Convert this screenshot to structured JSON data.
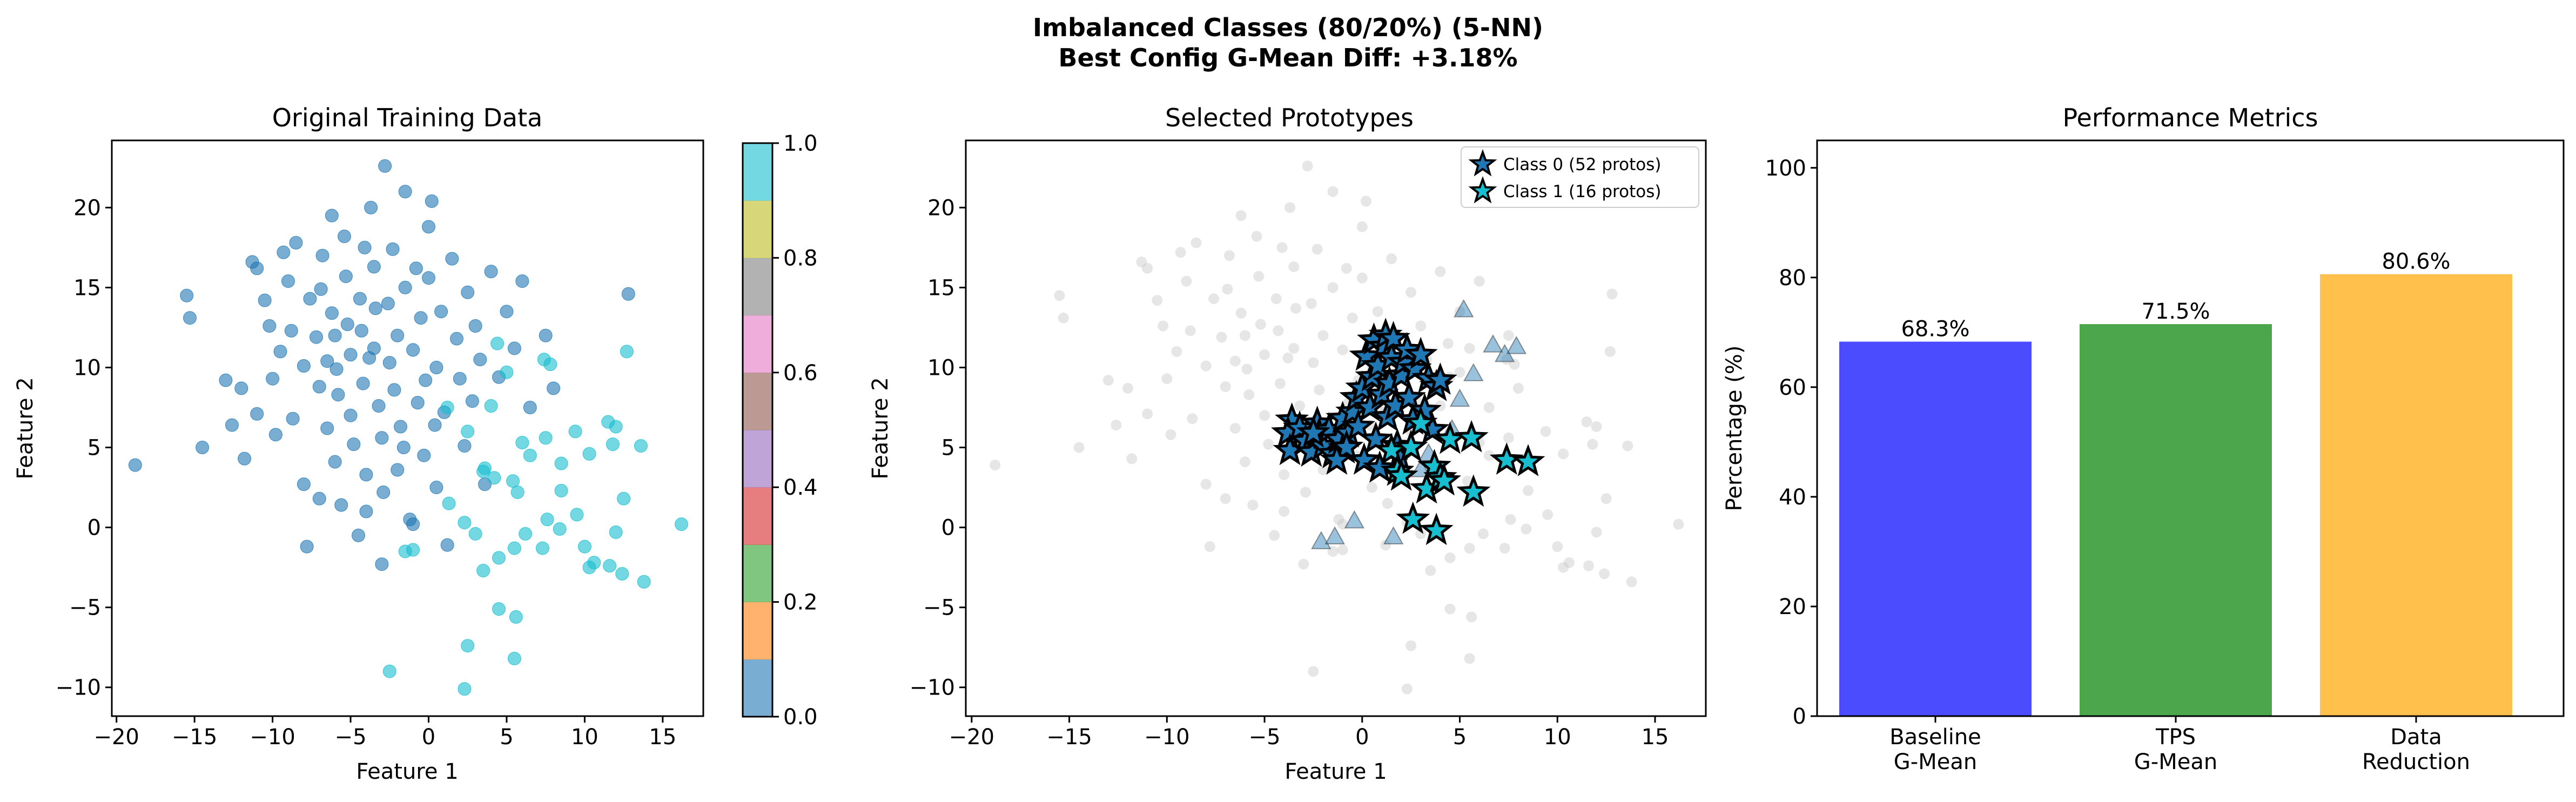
{
  "figure": {
    "title_line1": "Imbalanced Classes (80/20%) (5-NN)",
    "title_line2": "Best Config G-Mean Diff: +3.18%"
  },
  "chart_data": [
    {
      "type": "scatter",
      "title": "Original Training Data",
      "xlabel": "Feature 1",
      "ylabel": "Feature 2",
      "xlim": [
        -20.3,
        17.6
      ],
      "ylim": [
        -11.8,
        24.2
      ],
      "xticks": [
        -20,
        -15,
        -10,
        -5,
        0,
        5,
        10,
        15
      ],
      "yticks": [
        -10,
        -5,
        0,
        5,
        10,
        15,
        20
      ],
      "colorbar": {
        "ticks": [
          0.0,
          0.2,
          0.4,
          0.6,
          0.8,
          1.0
        ],
        "colors": [
          "#1f77b4",
          "#ff7f0e",
          "#2ca02c",
          "#d62728",
          "#9467bd",
          "#8c564b",
          "#e377c2",
          "#7f7f7f",
          "#bcbd22",
          "#17becf"
        ],
        "alpha": 0.6
      },
      "series": [
        {
          "name": "Class 0",
          "color": "#1f77b4",
          "points": [
            [
              -18.8,
              3.9
            ],
            [
              -15.5,
              14.5
            ],
            [
              -15.3,
              13.1
            ],
            [
              -14.5,
              5.0
            ],
            [
              -13.0,
              9.2
            ],
            [
              -12.6,
              6.4
            ],
            [
              -12.0,
              8.7
            ],
            [
              -11.8,
              4.3
            ],
            [
              -11.3,
              16.6
            ],
            [
              -11.0,
              16.2
            ],
            [
              -11.0,
              7.1
            ],
            [
              -10.5,
              14.2
            ],
            [
              -10.2,
              12.6
            ],
            [
              -10.0,
              9.3
            ],
            [
              -9.8,
              5.8
            ],
            [
              -9.3,
              17.2
            ],
            [
              -9.0,
              15.4
            ],
            [
              -8.8,
              12.3
            ],
            [
              -8.5,
              17.8
            ],
            [
              -8.0,
              10.1
            ],
            [
              -8.0,
              2.7
            ],
            [
              -7.8,
              -1.2
            ],
            [
              -7.6,
              14.3
            ],
            [
              -7.2,
              11.9
            ],
            [
              -7.0,
              8.8
            ],
            [
              -7.0,
              1.8
            ],
            [
              -6.8,
              17.0
            ],
            [
              -6.5,
              10.4
            ],
            [
              -6.5,
              6.2
            ],
            [
              -6.2,
              19.5
            ],
            [
              -6.2,
              13.4
            ],
            [
              -6.0,
              12.0
            ],
            [
              -6.0,
              4.1
            ],
            [
              -5.8,
              8.3
            ],
            [
              -5.6,
              1.4
            ],
            [
              -5.4,
              18.2
            ],
            [
              -5.3,
              15.7
            ],
            [
              -5.2,
              12.7
            ],
            [
              -5.0,
              10.8
            ],
            [
              -5.0,
              7.0
            ],
            [
              -4.8,
              5.2
            ],
            [
              -4.5,
              -0.5
            ],
            [
              -4.4,
              14.3
            ],
            [
              -4.3,
              12.3
            ],
            [
              -4.2,
              9.0
            ],
            [
              -4.0,
              3.3
            ],
            [
              -4.0,
              1.0
            ],
            [
              -3.7,
              20.0
            ],
            [
              -3.5,
              16.3
            ],
            [
              -3.5,
              11.2
            ],
            [
              -3.4,
              13.7
            ],
            [
              -3.2,
              7.6
            ],
            [
              -3.0,
              5.6
            ],
            [
              -3.0,
              -2.3
            ],
            [
              -2.8,
              22.6
            ],
            [
              -2.6,
              14.0
            ],
            [
              -2.5,
              10.3
            ],
            [
              -2.3,
              17.4
            ],
            [
              -2.2,
              8.6
            ],
            [
              -2.0,
              12.0
            ],
            [
              -2.0,
              3.6
            ],
            [
              -1.8,
              6.3
            ],
            [
              -1.5,
              21.0
            ],
            [
              -1.5,
              15.0
            ],
            [
              -1.2,
              0.5
            ],
            [
              -1.0,
              11.1
            ],
            [
              -0.8,
              16.2
            ],
            [
              -0.7,
              7.8
            ],
            [
              -0.5,
              13.1
            ],
            [
              -0.3,
              4.5
            ],
            [
              -0.2,
              9.2
            ],
            [
              0.0,
              18.8
            ],
            [
              0.0,
              15.6
            ],
            [
              0.2,
              20.4
            ],
            [
              0.5,
              10.0
            ],
            [
              0.5,
              2.5
            ],
            [
              0.8,
              13.5
            ],
            [
              1.0,
              7.2
            ],
            [
              1.2,
              -1.1
            ],
            [
              1.5,
              16.8
            ],
            [
              1.8,
              11.8
            ],
            [
              2.0,
              9.3
            ],
            [
              2.3,
              5.1
            ],
            [
              2.5,
              14.7
            ],
            [
              3.0,
              12.6
            ],
            [
              3.3,
              10.5
            ],
            [
              3.6,
              2.7
            ],
            [
              4.0,
              16.0
            ],
            [
              4.5,
              9.4
            ],
            [
              5.0,
              13.5
            ],
            [
              5.5,
              11.2
            ],
            [
              6.0,
              15.4
            ],
            [
              6.5,
              7.5
            ],
            [
              7.5,
              12.0
            ],
            [
              8.0,
              8.7
            ],
            [
              12.8,
              14.6
            ],
            [
              -9.5,
              11.0
            ],
            [
              -8.7,
              6.8
            ],
            [
              -4.1,
              17.5
            ],
            [
              -3.8,
              10.6
            ],
            [
              -2.9,
              2.2
            ],
            [
              -1.0,
              0.2
            ],
            [
              0.4,
              6.4
            ],
            [
              2.8,
              7.9
            ],
            [
              -6.9,
              14.9
            ],
            [
              -5.9,
              9.9
            ],
            [
              -1.6,
              5.0
            ]
          ]
        },
        {
          "name": "Class 1",
          "color": "#17becf",
          "points": [
            [
              -2.5,
              -9.0
            ],
            [
              2.3,
              -10.1
            ],
            [
              2.5,
              -7.4
            ],
            [
              4.5,
              -5.1
            ],
            [
              5.6,
              -5.6
            ],
            [
              5.5,
              -8.2
            ],
            [
              -1.5,
              -1.5
            ],
            [
              -1.0,
              -1.4
            ],
            [
              1.3,
              1.5
            ],
            [
              2.3,
              0.3
            ],
            [
              3.0,
              -0.4
            ],
            [
              3.5,
              -2.7
            ],
            [
              4.5,
              -1.9
            ],
            [
              5.5,
              -1.3
            ],
            [
              6.2,
              -0.4
            ],
            [
              7.3,
              -1.3
            ],
            [
              7.6,
              0.5
            ],
            [
              8.4,
              -0.1
            ],
            [
              9.5,
              0.8
            ],
            [
              10.0,
              -1.2
            ],
            [
              10.3,
              -2.5
            ],
            [
              10.6,
              -2.2
            ],
            [
              11.6,
              -2.4
            ],
            [
              12.0,
              -0.3
            ],
            [
              12.4,
              -2.9
            ],
            [
              13.8,
              -3.4
            ],
            [
              16.2,
              0.2
            ],
            [
              8.5,
              2.3
            ],
            [
              8.5,
              4.0
            ],
            [
              7.5,
              5.6
            ],
            [
              6.5,
              4.5
            ],
            [
              5.7,
              2.2
            ],
            [
              4.2,
              3.1
            ],
            [
              3.6,
              3.7
            ],
            [
              2.5,
              6.0
            ],
            [
              1.2,
              7.5
            ],
            [
              10.3,
              4.6
            ],
            [
              11.5,
              6.6
            ],
            [
              12.0,
              6.3
            ],
            [
              11.8,
              5.2
            ],
            [
              13.6,
              5.1
            ],
            [
              12.5,
              1.8
            ],
            [
              4.0,
              7.6
            ],
            [
              5.0,
              9.7
            ],
            [
              7.4,
              10.5
            ],
            [
              7.8,
              10.2
            ],
            [
              12.7,
              11.0
            ],
            [
              4.4,
              11.5
            ],
            [
              5.4,
              2.9
            ],
            [
              9.4,
              6.0
            ],
            [
              6.0,
              5.3
            ],
            [
              3.5,
              3.5
            ]
          ]
        }
      ]
    },
    {
      "type": "scatter",
      "title": "Selected Prototypes",
      "xlabel": "Feature 1",
      "ylabel": "Feature 2",
      "xlim": [
        -20.3,
        17.6
      ],
      "ylim": [
        -11.8,
        24.2
      ],
      "xticks": [
        -20,
        -15,
        -10,
        -5,
        0,
        5,
        10,
        15
      ],
      "yticks": [
        -10,
        -5,
        0,
        5,
        10,
        15,
        20
      ],
      "legend": {
        "placement": "upper right",
        "entries": [
          "Class 0 (52 protos)",
          "Class 1 (16 protos)"
        ]
      },
      "series": [
        {
          "name": "Class 0 (52 protos)",
          "marker": "star",
          "color": "#1f77b4",
          "points": [
            [
              -3.6,
              6.7
            ],
            [
              -3.8,
              5.9
            ],
            [
              -3.7,
              4.8
            ],
            [
              -3.2,
              6.2
            ],
            [
              -2.9,
              5.4
            ],
            [
              -2.6,
              4.7
            ],
            [
              -2.3,
              6.5
            ],
            [
              -2.2,
              5.8
            ],
            [
              -2.0,
              5.1
            ],
            [
              -1.7,
              6.1
            ],
            [
              -1.5,
              4.6
            ],
            [
              -1.2,
              5.5
            ],
            [
              -1.0,
              6.8
            ],
            [
              -0.9,
              4.9
            ],
            [
              -0.7,
              5.9
            ],
            [
              -0.5,
              7.2
            ],
            [
              -0.3,
              8.1
            ],
            [
              -0.2,
              6.3
            ],
            [
              0.0,
              8.7
            ],
            [
              0.1,
              4.2
            ],
            [
              0.2,
              10.7
            ],
            [
              0.4,
              7.5
            ],
            [
              0.5,
              9.4
            ],
            [
              0.6,
              11.7
            ],
            [
              0.7,
              5.5
            ],
            [
              0.8,
              10.1
            ],
            [
              1.0,
              8.3
            ],
            [
              1.1,
              11.3
            ],
            [
              1.2,
              12.0
            ],
            [
              1.3,
              6.9
            ],
            [
              1.4,
              9.0
            ],
            [
              1.5,
              10.6
            ],
            [
              1.6,
              11.8
            ],
            [
              1.7,
              7.6
            ],
            [
              1.8,
              5.1
            ],
            [
              2.0,
              9.5
            ],
            [
              2.1,
              10.3
            ],
            [
              2.3,
              11.1
            ],
            [
              2.4,
              8.1
            ],
            [
              2.6,
              6.7
            ],
            [
              2.7,
              9.9
            ],
            [
              3.0,
              10.8
            ],
            [
              3.2,
              7.3
            ],
            [
              3.4,
              9.3
            ],
            [
              3.6,
              6.1
            ],
            [
              3.8,
              8.8
            ],
            [
              4.0,
              9.2
            ],
            [
              1.9,
              4.4
            ],
            [
              0.9,
              3.7
            ],
            [
              -0.8,
              5.0
            ],
            [
              -2.5,
              5.9
            ],
            [
              -1.3,
              4.2
            ]
          ]
        },
        {
          "name": "Class 1 (16 protos)",
          "marker": "star",
          "color": "#17becf",
          "points": [
            [
              1.5,
              4.8
            ],
            [
              1.8,
              3.5
            ],
            [
              2.0,
              3.2
            ],
            [
              2.5,
              5.0
            ],
            [
              3.0,
              6.5
            ],
            [
              3.3,
              2.4
            ],
            [
              3.7,
              3.8
            ],
            [
              4.0,
              3.1
            ],
            [
              4.2,
              2.9
            ],
            [
              4.5,
              5.5
            ],
            [
              5.6,
              5.6
            ],
            [
              5.7,
              2.2
            ],
            [
              2.6,
              0.5
            ],
            [
              3.8,
              -0.2
            ],
            [
              7.4,
              4.2
            ],
            [
              8.5,
              4.1
            ]
          ]
        },
        {
          "name": "",
          "marker": "triangle",
          "color": "#1f77b4",
          "points": [
            [
              -2.1,
              -0.9
            ],
            [
              -1.4,
              -0.6
            ],
            [
              -0.4,
              0.4
            ],
            [
              1.6,
              -0.6
            ],
            [
              3.0,
              3.6
            ],
            [
              3.4,
              4.6
            ],
            [
              4.6,
              6.1
            ],
            [
              5.0,
              8.0
            ],
            [
              5.7,
              9.6
            ],
            [
              5.2,
              13.6
            ],
            [
              6.7,
              11.4
            ],
            [
              7.3,
              10.8
            ],
            [
              7.9,
              11.3
            ]
          ]
        }
      ],
      "background_points_note": "all training points in light gray"
    },
    {
      "type": "bar",
      "title": "Performance Metrics",
      "ylabel": "Percentage (%)",
      "categories": [
        "Baseline\nG-Mean",
        "TPS\nG-Mean",
        "Data\nReduction"
      ],
      "category_lines": [
        [
          "Baseline",
          "G-Mean"
        ],
        [
          "TPS",
          "G-Mean"
        ],
        [
          "Data",
          "Reduction"
        ]
      ],
      "values": [
        68.3,
        71.5,
        80.6
      ],
      "value_labels": [
        "68.3%",
        "71.5%",
        "80.6%"
      ],
      "colors": [
        "#0000ff",
        "#008000",
        "#ffa500"
      ],
      "alpha": 0.7,
      "ylim": [
        0,
        105
      ],
      "yticks": [
        0,
        20,
        40,
        60,
        80,
        100
      ]
    }
  ]
}
